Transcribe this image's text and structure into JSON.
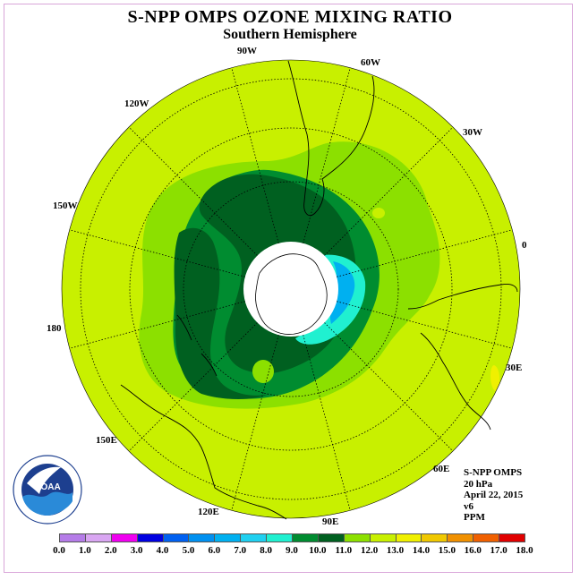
{
  "title": "S-NPP OMPS OZONE MIXING RATIO",
  "subtitle": "Southern Hemisphere",
  "longitude_labels": {
    "lon_90w": "90W",
    "lon_60w": "60W",
    "lon_120w": "120W",
    "lon_30w": "30W",
    "lon_150w": "150W",
    "lon_0": "0",
    "lon_180": "180",
    "lon_30e": "30E",
    "lon_150e": "150E",
    "lon_60e": "60E",
    "lon_120e": "120E",
    "lon_90e": "90E"
  },
  "info": {
    "instrument": "S-NPP OMPS",
    "level": "20 hPa",
    "date": "April 22, 2015",
    "version": "v6",
    "units": "PPM"
  },
  "logo": {
    "text": "NOAA",
    "ring_text": "NATIONAL OCEANIC AND ATMOSPHERIC ADMINISTRATION · U.S. DEPARTMENT OF COMMERCE"
  },
  "color_scale": {
    "ticks": [
      "0.0",
      "1.0",
      "2.0",
      "3.0",
      "4.0",
      "5.0",
      "6.0",
      "7.0",
      "8.0",
      "9.0",
      "10.0",
      "11.0",
      "12.0",
      "13.0",
      "14.0",
      "15.0",
      "16.0",
      "17.0",
      "18.0"
    ],
    "colors": [
      "#b57ce8",
      "#d9a6f2",
      "#f000f0",
      "#0000e0",
      "#0060f0",
      "#0090f0",
      "#00b0f0",
      "#20d0f0",
      "#20f0d0",
      "#008c30",
      "#006020",
      "#8ce000",
      "#c8f000",
      "#f0f000",
      "#f0c800",
      "#f09000",
      "#f06000",
      "#e00000",
      "#805030"
    ]
  },
  "map_colors": {
    "background_field": "#c8f000",
    "band_11": "#8ce000",
    "band_9": "#008c30",
    "core_10": "#006020",
    "cyan_8": "#20f0d0",
    "blue_6": "#00b0f0",
    "yellow_13": "#f0f000",
    "polar_hole": "#ffffff"
  }
}
